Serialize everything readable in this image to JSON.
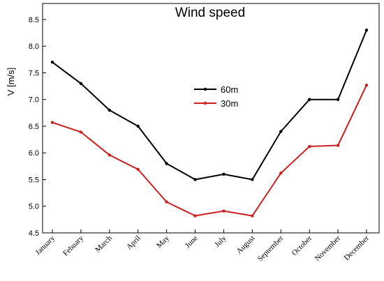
{
  "chart_data": {
    "type": "line",
    "title": "Wind speed",
    "xlabel": "",
    "ylabel": "V [m/s]",
    "categories": [
      "January",
      "Febuary",
      "March",
      "April",
      "May",
      "June",
      "July",
      "August",
      "September",
      "October",
      "November",
      "December"
    ],
    "ylim": [
      4.5,
      8.8
    ],
    "yticks": [
      "4.5",
      "5.0",
      "5.5",
      "6.0",
      "6.5",
      "7.0",
      "7.5",
      "8.0",
      "8.5"
    ],
    "grid": false,
    "legend_position": "center-top",
    "series": [
      {
        "name": "60m",
        "color": "#000000",
        "values": [
          7.7,
          7.3,
          6.8,
          6.5,
          5.8,
          5.5,
          5.6,
          5.5,
          6.4,
          7.0,
          7.0,
          8.3
        ]
      },
      {
        "name": "30m",
        "color": "#cc1f1f",
        "values": [
          6.57,
          6.39,
          5.96,
          5.69,
          5.08,
          4.82,
          4.91,
          4.82,
          5.62,
          6.12,
          6.14,
          7.27
        ]
      }
    ]
  }
}
